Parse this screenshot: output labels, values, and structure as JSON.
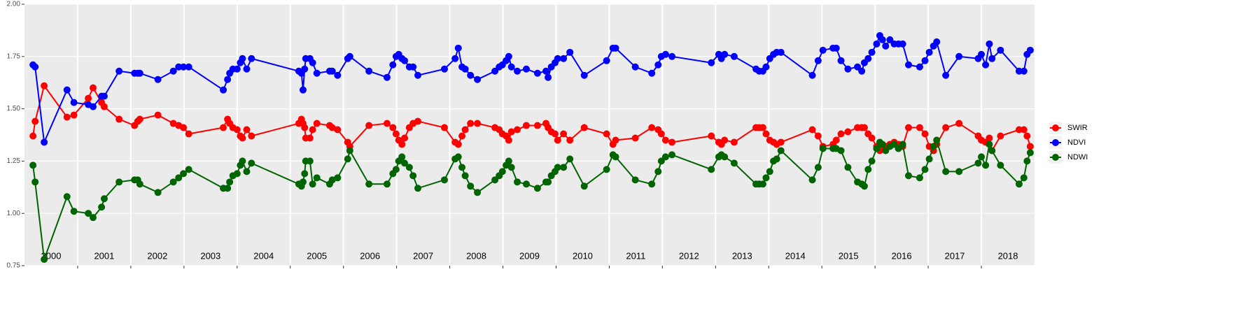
{
  "chart_data": {
    "type": "line",
    "x": [
      2000.16,
      2000.2,
      2000.37,
      2000.8,
      2000.93,
      2001.2,
      2001.29,
      2001.45,
      2001.5,
      2001.78,
      2002.07,
      2002.13,
      2002.17,
      2002.51,
      2002.8,
      2002.9,
      2002.99,
      2003.09,
      2003.74,
      2003.82,
      2003.86,
      2003.92,
      2004.0,
      2004.06,
      2004.1,
      2004.18,
      2004.27,
      2005.16,
      2005.21,
      2005.24,
      2005.27,
      2005.29,
      2005.37,
      2005.42,
      2005.5,
      2005.74,
      2005.79,
      2005.89,
      2006.08,
      2006.12,
      2006.48,
      2006.82,
      2006.93,
      2006.99,
      2007.04,
      2007.1,
      2007.15,
      2007.24,
      2007.31,
      2007.4,
      2007.9,
      2008.1,
      2008.16,
      2008.23,
      2008.29,
      2008.39,
      2008.52,
      2008.85,
      2008.93,
      2008.99,
      2009.06,
      2009.11,
      2009.16,
      2009.27,
      2009.44,
      2009.65,
      2009.81,
      2009.85,
      2009.91,
      2009.98,
      2010.03,
      2010.14,
      2010.26,
      2010.53,
      2010.95,
      2011.07,
      2011.12,
      2011.49,
      2011.8,
      2011.92,
      2011.98,
      2012.06,
      2012.18,
      2012.92,
      2013.06,
      2013.11,
      2013.17,
      2013.35,
      2013.76,
      2013.82,
      2013.89,
      2013.95,
      2014.02,
      2014.09,
      2014.15,
      2014.23,
      2014.82,
      2014.93,
      2015.02,
      2015.21,
      2015.27,
      2015.36,
      2015.49,
      2015.67,
      2015.75,
      2015.8,
      2015.87,
      2015.94,
      2016.03,
      2016.09,
      2016.14,
      2016.2,
      2016.28,
      2016.36,
      2016.44,
      2016.52,
      2016.63,
      2016.84,
      2016.94,
      2017.02,
      2017.1,
      2017.16,
      2017.33,
      2017.58,
      2017.94,
      2018.0,
      2018.08,
      2018.15,
      2018.2,
      2018.36,
      2018.71,
      2018.8,
      2018.86,
      2018.92
    ],
    "series": [
      {
        "name": "SWIR",
        "color": "#ff0000",
        "values": [
          1.37,
          1.44,
          1.61,
          1.46,
          1.47,
          1.55,
          1.6,
          1.53,
          1.51,
          1.45,
          1.42,
          1.44,
          1.45,
          1.47,
          1.43,
          1.42,
          1.41,
          1.38,
          1.41,
          1.45,
          1.43,
          1.41,
          1.4,
          1.37,
          1.36,
          1.4,
          1.37,
          1.43,
          1.45,
          1.43,
          1.41,
          1.36,
          1.36,
          1.4,
          1.43,
          1.42,
          1.41,
          1.4,
          1.34,
          1.32,
          1.42,
          1.43,
          1.41,
          1.38,
          1.35,
          1.33,
          1.36,
          1.41,
          1.43,
          1.44,
          1.41,
          1.34,
          1.33,
          1.37,
          1.4,
          1.43,
          1.43,
          1.41,
          1.4,
          1.38,
          1.37,
          1.35,
          1.39,
          1.4,
          1.42,
          1.42,
          1.43,
          1.41,
          1.39,
          1.38,
          1.35,
          1.38,
          1.35,
          1.41,
          1.38,
          1.33,
          1.35,
          1.36,
          1.41,
          1.4,
          1.38,
          1.35,
          1.34,
          1.37,
          1.34,
          1.33,
          1.35,
          1.34,
          1.41,
          1.41,
          1.41,
          1.38,
          1.35,
          1.34,
          1.33,
          1.34,
          1.4,
          1.37,
          1.32,
          1.33,
          1.35,
          1.38,
          1.39,
          1.41,
          1.41,
          1.41,
          1.38,
          1.36,
          1.32,
          1.3,
          1.31,
          1.32,
          1.33,
          1.34,
          1.33,
          1.32,
          1.41,
          1.41,
          1.38,
          1.32,
          1.3,
          1.33,
          1.41,
          1.43,
          1.37,
          1.35,
          1.34,
          1.36,
          1.3,
          1.37,
          1.4,
          1.4,
          1.37,
          1.32
        ]
      },
      {
        "name": "NDVI",
        "color": "#0000ff",
        "values": [
          1.71,
          1.7,
          1.34,
          1.59,
          1.53,
          1.52,
          1.51,
          1.56,
          1.56,
          1.68,
          1.67,
          1.67,
          1.67,
          1.64,
          1.68,
          1.7,
          1.7,
          1.7,
          1.59,
          1.64,
          1.67,
          1.69,
          1.69,
          1.72,
          1.74,
          1.69,
          1.74,
          1.68,
          1.67,
          1.59,
          1.69,
          1.74,
          1.74,
          1.72,
          1.67,
          1.68,
          1.68,
          1.66,
          1.74,
          1.75,
          1.68,
          1.65,
          1.71,
          1.75,
          1.76,
          1.74,
          1.73,
          1.7,
          1.7,
          1.66,
          1.69,
          1.74,
          1.79,
          1.7,
          1.69,
          1.66,
          1.64,
          1.68,
          1.7,
          1.71,
          1.73,
          1.75,
          1.7,
          1.68,
          1.69,
          1.67,
          1.68,
          1.65,
          1.7,
          1.72,
          1.74,
          1.74,
          1.77,
          1.66,
          1.73,
          1.79,
          1.79,
          1.7,
          1.67,
          1.71,
          1.75,
          1.76,
          1.75,
          1.72,
          1.76,
          1.74,
          1.76,
          1.75,
          1.69,
          1.68,
          1.68,
          1.7,
          1.74,
          1.76,
          1.77,
          1.77,
          1.66,
          1.73,
          1.78,
          1.79,
          1.79,
          1.73,
          1.69,
          1.7,
          1.68,
          1.72,
          1.74,
          1.77,
          1.81,
          1.85,
          1.83,
          1.8,
          1.83,
          1.81,
          1.81,
          1.81,
          1.71,
          1.7,
          1.73,
          1.77,
          1.8,
          1.82,
          1.66,
          1.75,
          1.74,
          1.76,
          1.71,
          1.81,
          1.74,
          1.78,
          1.68,
          1.68,
          1.76,
          1.78
        ]
      },
      {
        "name": "NDWI",
        "color": "#006400",
        "values": [
          1.23,
          1.15,
          0.78,
          1.08,
          1.01,
          1.0,
          0.98,
          1.03,
          1.07,
          1.15,
          1.16,
          1.16,
          1.14,
          1.1,
          1.15,
          1.17,
          1.19,
          1.21,
          1.12,
          1.12,
          1.15,
          1.18,
          1.19,
          1.23,
          1.25,
          1.2,
          1.24,
          1.14,
          1.13,
          1.15,
          1.19,
          1.25,
          1.25,
          1.14,
          1.17,
          1.14,
          1.16,
          1.17,
          1.26,
          1.3,
          1.14,
          1.14,
          1.19,
          1.21,
          1.25,
          1.27,
          1.24,
          1.22,
          1.18,
          1.12,
          1.16,
          1.26,
          1.27,
          1.22,
          1.18,
          1.13,
          1.1,
          1.16,
          1.18,
          1.2,
          1.23,
          1.25,
          1.22,
          1.15,
          1.14,
          1.12,
          1.15,
          1.15,
          1.18,
          1.2,
          1.22,
          1.22,
          1.26,
          1.13,
          1.21,
          1.28,
          1.27,
          1.16,
          1.14,
          1.2,
          1.25,
          1.27,
          1.28,
          1.21,
          1.27,
          1.28,
          1.27,
          1.24,
          1.14,
          1.14,
          1.14,
          1.17,
          1.2,
          1.25,
          1.26,
          1.3,
          1.16,
          1.22,
          1.31,
          1.31,
          1.31,
          1.3,
          1.22,
          1.15,
          1.14,
          1.13,
          1.21,
          1.25,
          1.31,
          1.34,
          1.33,
          1.3,
          1.32,
          1.33,
          1.31,
          1.33,
          1.18,
          1.17,
          1.21,
          1.26,
          1.32,
          1.35,
          1.2,
          1.2,
          1.24,
          1.27,
          1.23,
          1.33,
          1.3,
          1.23,
          1.14,
          1.17,
          1.25,
          1.29
        ]
      }
    ],
    "year_labels": [
      "2000",
      "2001",
      "2002",
      "2003",
      "2004",
      "2005",
      "2006",
      "2007",
      "2008",
      "2009",
      "2010",
      "2011",
      "2012",
      "2013",
      "2014",
      "2015",
      "2016",
      "2017",
      "2018"
    ],
    "xlim": [
      2000,
      2019
    ],
    "xticks": [
      2001,
      2002,
      2003,
      2004,
      2005,
      2006,
      2007,
      2008,
      2009,
      2010,
      2011,
      2012,
      2013,
      2014,
      2015,
      2016,
      2017,
      2018
    ],
    "ylim": [
      0.75,
      2.0
    ],
    "yticks": [
      {
        "value": 0.75,
        "label": "0.75"
      },
      {
        "value": 1.0,
        "label": "1.00"
      },
      {
        "value": 1.25,
        "label": "1.25"
      },
      {
        "value": 1.5,
        "label": "1.50"
      },
      {
        "value": 1.75,
        "label": "1.75"
      },
      {
        "value": 2.0,
        "label": "2.00"
      }
    ],
    "grid": true,
    "legend": "right"
  }
}
